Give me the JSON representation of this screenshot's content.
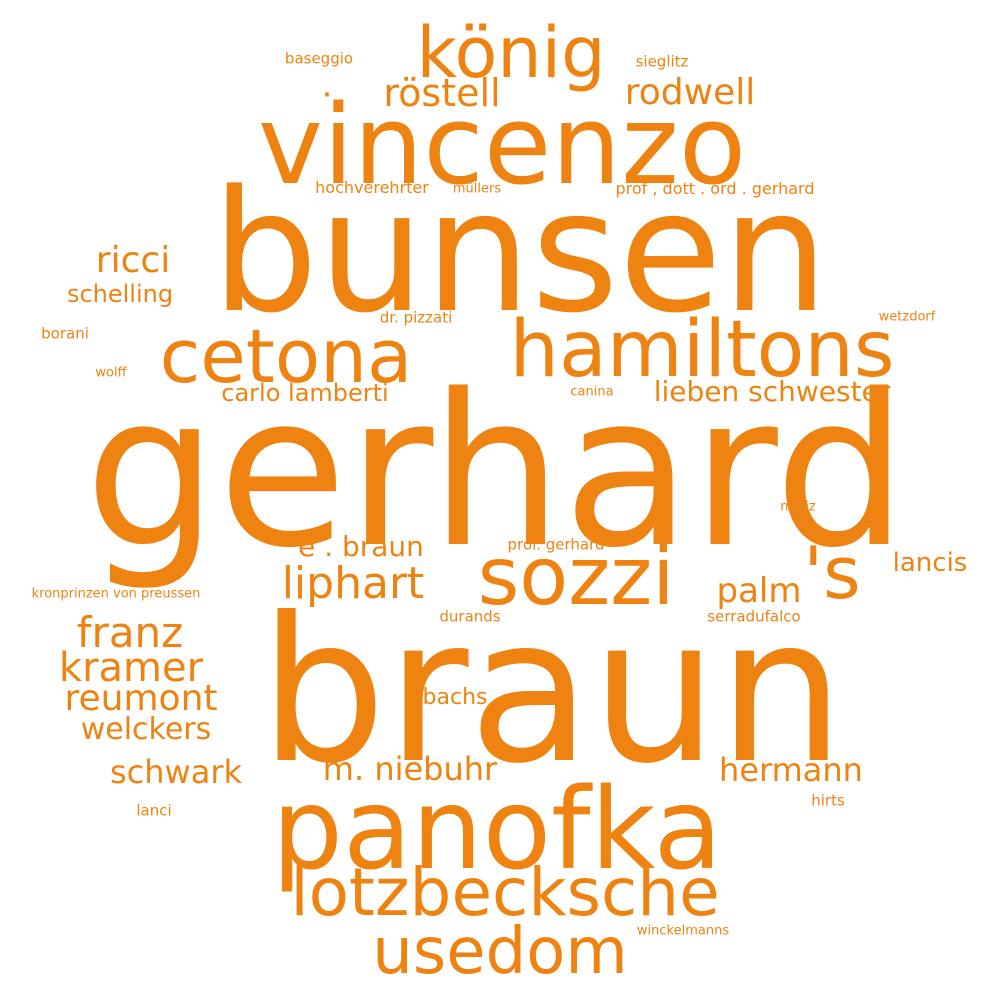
{
  "word_cloud": {
    "color": "#ee8312",
    "words": [
      {
        "text": "gerhard",
        "weight": 1.0
      },
      {
        "text": "braun",
        "weight": 0.92
      },
      {
        "text": "bunsen",
        "weight": 0.8
      },
      {
        "text": "vincenzo",
        "weight": 0.6
      },
      {
        "text": "panofka",
        "weight": 0.6
      },
      {
        "text": "sozzi",
        "weight": 0.45
      },
      {
        "text": "hamiltons",
        "weight": 0.45
      },
      {
        "text": "'s",
        "weight": 0.4
      },
      {
        "text": "cetona",
        "weight": 0.42
      },
      {
        "text": "lotzbecksche",
        "weight": 0.4
      },
      {
        "text": "usedom",
        "weight": 0.4
      },
      {
        "text": "könig",
        "weight": 0.4
      },
      {
        "text": "liphart",
        "weight": 0.25
      },
      {
        "text": "franz",
        "weight": 0.25
      },
      {
        "text": "kramer",
        "weight": 0.25
      },
      {
        "text": "reumont",
        "weight": 0.22
      },
      {
        "text": "röstell",
        "weight": 0.22
      },
      {
        "text": "rodwell",
        "weight": 0.2
      },
      {
        "text": "ricci",
        "weight": 0.2
      },
      {
        "text": "palm",
        "weight": 0.2
      },
      {
        "text": "m. niebuhr",
        "weight": 0.18
      },
      {
        "text": "hermann",
        "weight": 0.18
      },
      {
        "text": "schwark",
        "weight": 0.18
      },
      {
        "text": "welckers",
        "weight": 0.16
      },
      {
        "text": "lieben schwester",
        "weight": 0.16
      },
      {
        "text": "schelling",
        "weight": 0.15
      },
      {
        "text": "e . braun",
        "weight": 0.15
      },
      {
        "text": "lancis",
        "weight": 0.15
      },
      {
        "text": "carlo lamberti",
        "weight": 0.14
      },
      {
        "text": "bachs",
        "weight": 0.12
      },
      {
        "text": "hochverehrter",
        "weight": 0.08
      },
      {
        "text": "prof , dott . ord . gerhard",
        "weight": 0.08
      },
      {
        "text": "dr. pizzati",
        "weight": 0.07
      },
      {
        "text": "baseggio",
        "weight": 0.07
      },
      {
        "text": "sieglitz",
        "weight": 0.07
      },
      {
        "text": "borani",
        "weight": 0.07
      },
      {
        "text": "prof. gerhard",
        "weight": 0.07
      },
      {
        "text": "durands",
        "weight": 0.07
      },
      {
        "text": "serradufalco",
        "weight": 0.07
      },
      {
        "text": "lanci",
        "weight": 0.07
      },
      {
        "text": "hirts",
        "weight": 0.07
      },
      {
        "text": "müllers",
        "weight": 0.05
      },
      {
        "text": "wetzdorf",
        "weight": 0.05
      },
      {
        "text": "wolff",
        "weight": 0.05
      },
      {
        "text": "canina",
        "weight": 0.05
      },
      {
        "text": "miltiz",
        "weight": 0.05
      },
      {
        "text": "kronprinzen von preussen",
        "weight": 0.05
      },
      {
        "text": "winckelmanns",
        "weight": 0.05
      },
      {
        "text": "·",
        "weight": 0.05
      }
    ]
  }
}
